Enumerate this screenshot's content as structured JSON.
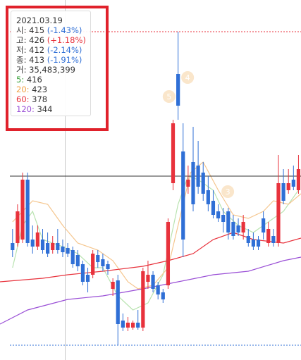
{
  "chart_data": {
    "type": "candlestick",
    "categories": [
      null,
      null,
      null,
      null,
      null,
      null,
      null,
      null,
      null,
      null,
      null,
      null,
      null,
      null,
      null,
      null,
      null,
      null,
      null,
      null,
      null,
      null,
      null,
      null,
      null,
      null,
      null,
      null,
      null,
      null,
      null,
      null,
      null,
      null,
      null,
      null,
      null,
      null,
      null,
      null,
      null,
      null,
      null,
      null,
      null,
      null,
      null,
      null,
      null,
      null,
      null,
      null,
      null,
      null,
      null,
      null,
      null,
      null
    ],
    "open": [
      155,
      155,
      160,
      245,
      160,
      150,
      160,
      155,
      145,
      155,
      150,
      148,
      145,
      138,
      125,
      110,
      110,
      138,
      132,
      125,
      90,
      102,
      45,
      35,
      35,
      42,
      35,
      100,
      110,
      95,
      85,
      95,
      240,
      395,
      285,
      235,
      270,
      265,
      255,
      230,
      215,
      200,
      195,
      200,
      185,
      180,
      170,
      165,
      160,
      160,
      190,
      155,
      165,
      155,
      240,
      230,
      245,
      230
    ],
    "high": [
      175,
      210,
      255,
      255,
      180,
      180,
      175,
      170,
      165,
      175,
      160,
      155,
      150,
      145,
      130,
      120,
      145,
      145,
      140,
      130,
      105,
      110,
      55,
      50,
      45,
      60,
      120,
      130,
      115,
      100,
      90,
      190,
      330,
      455,
      325,
      265,
      320,
      300,
      270,
      250,
      230,
      210,
      205,
      205,
      195,
      190,
      195,
      175,
      170,
      165,
      200,
      185,
      175,
      280,
      260,
      260,
      265,
      280
    ],
    "low": [
      135,
      150,
      155,
      150,
      140,
      145,
      140,
      135,
      140,
      140,
      135,
      135,
      120,
      115,
      95,
      85,
      105,
      120,
      115,
      110,
      80,
      10,
      30,
      30,
      32,
      32,
      30,
      90,
      85,
      75,
      70,
      90,
      230,
      330,
      135,
      225,
      200,
      225,
      215,
      200,
      190,
      185,
      170,
      160,
      160,
      165,
      160,
      150,
      145,
      145,
      160,
      150,
      150,
      150,
      210,
      225,
      230,
      225
    ],
    "close": [
      145,
      200,
      245,
      155,
      150,
      170,
      145,
      140,
      155,
      145,
      142,
      140,
      125,
      122,
      100,
      100,
      140,
      128,
      122,
      118,
      100,
      40,
      35,
      42,
      42,
      35,
      115,
      110,
      90,
      82,
      75,
      185,
      325,
      350,
      160,
      245,
      210,
      235,
      225,
      210,
      195,
      190,
      185,
      170,
      165,
      170,
      185,
      155,
      150,
      150,
      170,
      175,
      155,
      240,
      215,
      240,
      235,
      260
    ],
    "up_color": "#e8323c",
    "down_color": "#2f6fd6",
    "xlim": [
      -2.5,
      57.5
    ],
    "ylim": [
      0,
      500
    ],
    "series": [
      {
        "name": "5",
        "color": "#b9e3b0",
        "x": [
          0,
          2,
          4,
          6,
          10,
          13,
          16,
          18,
          21,
          24,
          27,
          30,
          33,
          35,
          37,
          40,
          42,
          45,
          48,
          51,
          54,
          57
        ],
        "values": [
          120,
          180,
          200,
          160,
          150,
          140,
          120,
          120,
          80,
          60,
          70,
          110,
          210,
          250,
          245,
          230,
          200,
          180,
          170,
          185,
          200,
          230
        ]
      },
      {
        "name": "20",
        "color": "#f5c68e",
        "x": [
          0,
          4,
          7,
          10,
          13,
          17,
          20,
          23,
          25,
          28,
          31,
          33,
          35.5,
          38,
          41,
          44,
          47,
          50,
          52,
          55,
          57.5
        ],
        "values": [
          185,
          215,
          210,
          180,
          155,
          145,
          130,
          100,
          90,
          95,
          120,
          180,
          255,
          270,
          230,
          195,
          190,
          200,
          215,
          210,
          225
        ]
      },
      {
        "name": "60",
        "color": "#e8323c",
        "x": [
          -2.5,
          6,
          11,
          18,
          26,
          31,
          36,
          40,
          44,
          48,
          54,
          57.5
        ],
        "values": [
          100,
          105,
          110,
          115,
          122,
          130,
          140,
          160,
          170,
          160,
          155,
          162
        ]
      },
      {
        "name": "120",
        "color": "#9a4fd6",
        "x": [
          -2.5,
          3,
          11,
          18,
          26,
          33,
          40,
          47,
          54,
          57.5
        ],
        "values": [
          40,
          60,
          75,
          80,
          90,
          100,
          110,
          115,
          130,
          135
        ]
      }
    ],
    "lines": [
      {
        "value": 250,
        "color": "#333333",
        "dash": false
      },
      {
        "value": 455,
        "color": "#e8323c",
        "dash": true
      },
      {
        "value": 10,
        "color": "#2f6fd6",
        "dash": true
      }
    ],
    "crosshair_x": 10.5,
    "annotations": [
      {
        "label": "5",
        "x": 31.2,
        "y": 363
      },
      {
        "label": "4",
        "x": 34.9,
        "y": 390
      },
      {
        "label": "3",
        "x": 42.9,
        "y": 228
      }
    ]
  },
  "tooltip": {
    "date": "2021.03.19",
    "prices": [
      {
        "label": "시:",
        "value": "415",
        "change": "(-1.43%)",
        "color": "#2f6fd6"
      },
      {
        "label": "고:",
        "value": "426",
        "change": "(+1.18%)",
        "color": "#e8323c"
      },
      {
        "label": "저:",
        "value": "412",
        "change": "(-2.14%)",
        "color": "#2f6fd6"
      },
      {
        "label": "종:",
        "value": "413",
        "change": "(-1.91%)",
        "color": "#2f6fd6"
      }
    ],
    "volume": {
      "label": "거:",
      "value": "35,483,399"
    },
    "averages": [
      {
        "label": "5:",
        "value": "416",
        "color": "#3aa03a"
      },
      {
        "label": "20:",
        "value": "423",
        "color": "#f0a040"
      },
      {
        "label": "60:",
        "value": "378",
        "color": "#e8323c"
      },
      {
        "label": "120:",
        "value": "344",
        "color": "#9a4fd6"
      }
    ]
  }
}
